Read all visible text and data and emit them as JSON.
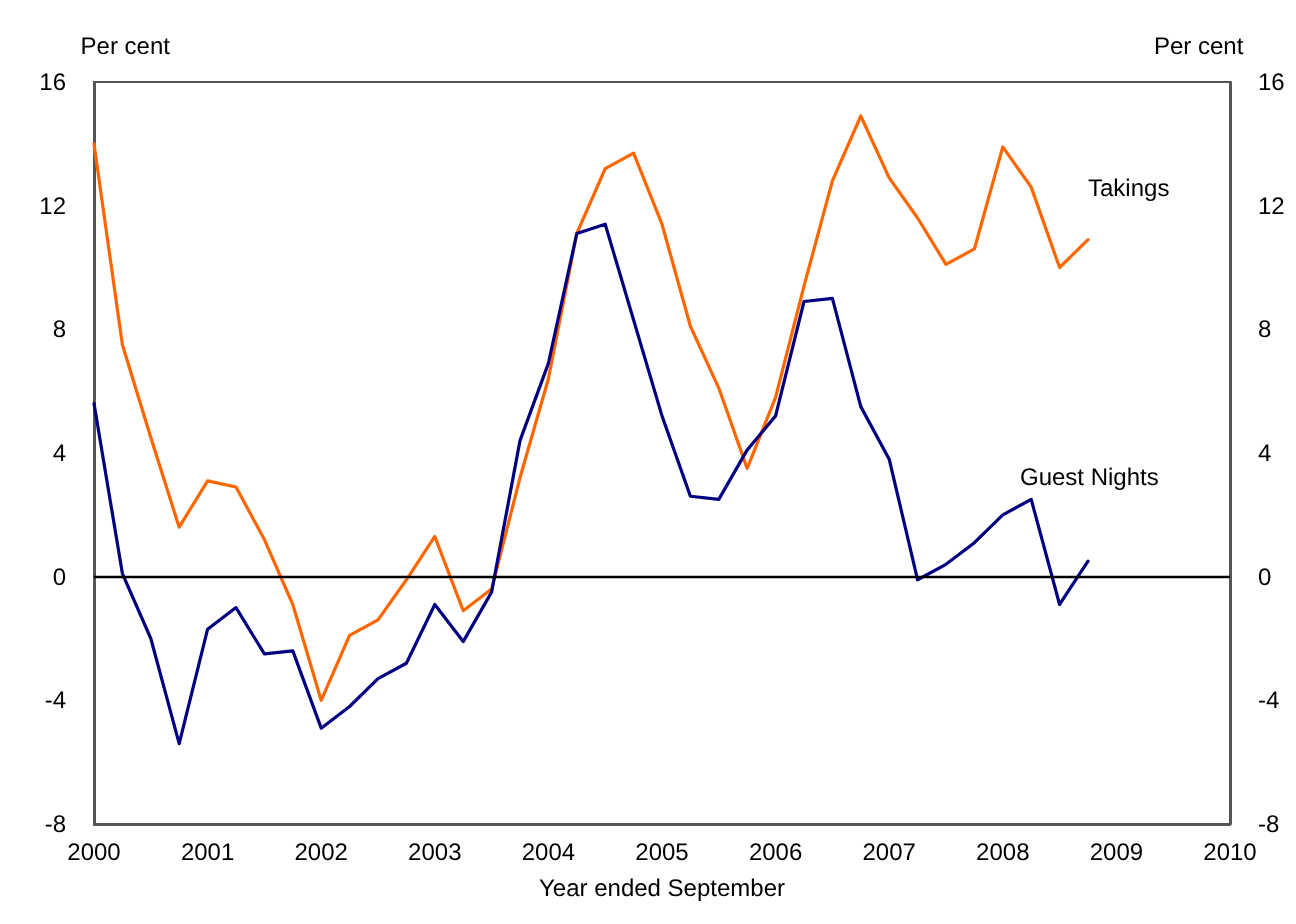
{
  "chart_data": {
    "type": "line",
    "xlabel": "Year ended September",
    "ylabel": "Per cent",
    "y2label": "Per cent",
    "x": [
      2000,
      2000.25,
      2000.5,
      2000.75,
      2001,
      2001.25,
      2001.5,
      2001.75,
      2002,
      2002.25,
      2002.5,
      2002.75,
      2003,
      2003.25,
      2003.5,
      2003.75,
      2004,
      2004.25,
      2004.5,
      2004.75,
      2005,
      2005.25,
      2005.5,
      2005.75,
      2006,
      2006.25,
      2006.5,
      2006.75,
      2007,
      2007.25,
      2007.5,
      2007.75,
      2008,
      2008.25,
      2008.5,
      2008.75
    ],
    "series": [
      {
        "name": "Takings",
        "color": "#ff6600",
        "values": [
          14.0,
          7.5,
          4.5,
          1.6,
          3.1,
          2.9,
          1.2,
          -0.9,
          -4.0,
          -1.9,
          -1.4,
          -0.1,
          1.3,
          -1.1,
          -0.4,
          3.2,
          6.4,
          11.1,
          13.2,
          13.7,
          11.4,
          8.1,
          6.1,
          3.5,
          5.8,
          9.4,
          12.8,
          14.9,
          12.9,
          11.6,
          10.1,
          10.6,
          13.9,
          12.6,
          10.0,
          10.9
        ]
      },
      {
        "name": "Guest Nights",
        "color": "#000080",
        "values": [
          5.6,
          0.1,
          -2.0,
          -5.4,
          -1.7,
          -1.0,
          -2.5,
          -2.4,
          -4.9,
          -4.2,
          -3.3,
          -2.8,
          -0.9,
          -2.1,
          -0.5,
          4.4,
          6.9,
          11.1,
          11.4,
          8.3,
          5.2,
          2.6,
          2.5,
          4.1,
          5.2,
          8.9,
          9.0,
          5.5,
          3.8,
          -0.1,
          0.4,
          1.1,
          2.0,
          2.5,
          -0.9,
          0.5
        ]
      }
    ],
    "xlim": [
      2000,
      2010
    ],
    "xticks": [
      2000,
      2001,
      2002,
      2003,
      2004,
      2005,
      2006,
      2007,
      2008,
      2009,
      2010
    ],
    "ylim": [
      -8,
      16
    ],
    "yticks": [
      -8,
      -4,
      0,
      4,
      8,
      12,
      16
    ],
    "y2lim": [
      -8,
      16
    ],
    "y2ticks": [
      -8,
      -4,
      0,
      4,
      8,
      12,
      16
    ],
    "ref_lines": [
      {
        "axis": "y",
        "value": 0,
        "color": "#000000"
      }
    ],
    "grid": false,
    "legend": false,
    "marker": "none",
    "line_style": "solid"
  }
}
